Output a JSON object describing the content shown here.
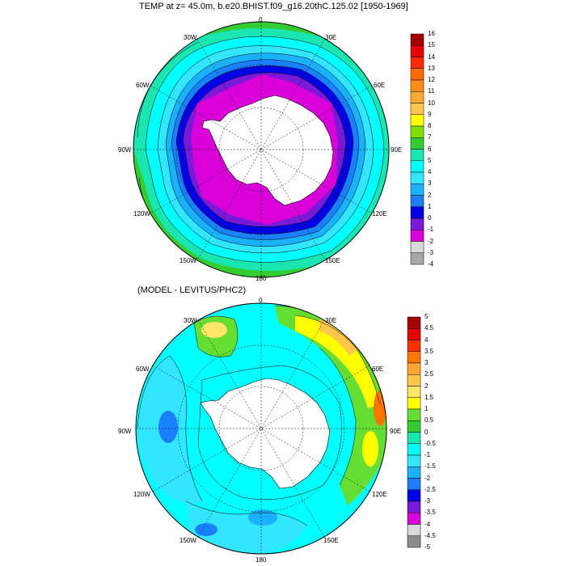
{
  "top_panel": {
    "title": "TEMP at z=  45.0m, b.e20.BHIST.f09_g16.20thC.125.02 [1950-1969]",
    "lon_labels": [
      "0",
      "30E",
      "60E",
      "90E",
      "120E",
      "150E",
      "180",
      "150W",
      "120W",
      "90W",
      "60W",
      "30W"
    ],
    "colorbar": {
      "ticks": [
        "16",
        "15",
        "14",
        "13",
        "12",
        "11",
        "10",
        "9",
        "8",
        "7",
        "6",
        "5",
        "4",
        "3",
        "2",
        "1",
        "0",
        "-1",
        "-2",
        "-3",
        "-4"
      ],
      "colors": [
        "#a50000",
        "#e60000",
        "#ff2a00",
        "#ff6a00",
        "#ff8c1a",
        "#ffaa33",
        "#ffc84d",
        "#ffff00",
        "#7fe000",
        "#33cc33",
        "#19e6b0",
        "#00ffff",
        "#33e6ff",
        "#1ab2ff",
        "#1a80ff",
        "#0000e6",
        "#7a1ad9",
        "#d900d9",
        "#d9d9d9",
        "#a6a6a6"
      ]
    },
    "colors": {
      "ice": "#d900d9",
      "ring_dark": "#2200cc",
      "land": "#ffffff"
    }
  },
  "bottom_panel": {
    "title": "(MODEL - LEVITUS/PHC2)",
    "lon_labels": [
      "0",
      "30E",
      "60E",
      "90E",
      "120E",
      "150E",
      "180",
      "150W",
      "120W",
      "90W",
      "60W",
      "30W"
    ],
    "colorbar": {
      "ticks": [
        "5",
        "4.5",
        "4",
        "3.5",
        "3",
        "2.5",
        "2",
        "1.5",
        "1",
        "0.5",
        "0",
        "-0.5",
        "-1",
        "-1.5",
        "-2",
        "-2.5",
        "-3",
        "-3.5",
        "-4",
        "-4.5",
        "-5"
      ],
      "colors": [
        "#a50000",
        "#e60000",
        "#ff3300",
        "#ff7700",
        "#ffa533",
        "#ffc84d",
        "#ffe666",
        "#ffff00",
        "#66dd33",
        "#33cc33",
        "#19e6b0",
        "#00ffff",
        "#33e6ff",
        "#1ab2ff",
        "#1a80ff",
        "#0000e6",
        "#7a1ad9",
        "#d900d9",
        "#d9d9d9",
        "#8c8c8c"
      ]
    }
  }
}
